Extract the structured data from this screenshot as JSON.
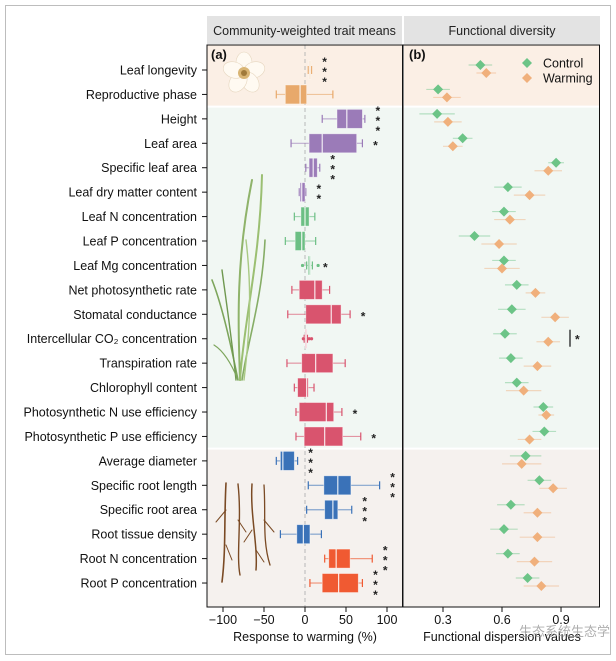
{
  "chart_data": [
    {
      "type": "box",
      "panel": "(a)",
      "title": "Community-weighted trait means",
      "xlabel": "Response to warming (%)",
      "xlim": [
        -120,
        120
      ],
      "xticks": [
        -100,
        -50,
        0,
        50,
        100
      ],
      "xtick_labels": [
        "−100",
        "−50",
        "0",
        "50",
        "100"
      ],
      "reference_line": 0,
      "categories": [
        "Leaf longevity",
        "Reproductive phase",
        "Height",
        "Leaf area",
        "Specific leaf area",
        "Leaf dry matter content",
        "Leaf N concentration",
        "Leaf P concentration",
        "Leaf Mg concentration",
        "Net photosynthetic rate",
        "Stomatal conductance",
        "Intercellular CO₂ concentration",
        "Transpiration rate",
        "Chlorophyll content",
        "Photosynthetic N use efficiency",
        "Photosynthetic P use efficiency",
        "Average diameter",
        "Specific root length",
        "Specific root area",
        "Root tissue density",
        "Root N concentration",
        "Root P concentration"
      ],
      "groups": [
        {
          "name": "reproductive",
          "color": "#e8a96b",
          "rows": [
            0,
            1
          ]
        },
        {
          "name": "leaf-structure",
          "color": "#9b7bb8",
          "rows": [
            2,
            3,
            4,
            5
          ]
        },
        {
          "name": "leaf-chemistry",
          "color": "#6cbf84",
          "rows": [
            6,
            7,
            8
          ]
        },
        {
          "name": "leaf-physiology",
          "color": "#d9546e",
          "rows": [
            9,
            10,
            11,
            12,
            13,
            14,
            15
          ]
        },
        {
          "name": "root-morphology",
          "color": "#3a72b8",
          "rows": [
            16,
            17,
            18,
            19
          ]
        },
        {
          "name": "root-chemistry",
          "color": "#f05a32",
          "rows": [
            20,
            21
          ]
        }
      ],
      "boxes": [
        {
          "wlo": 4,
          "q1": 5,
          "med": 6,
          "q3": 7,
          "whi": 8,
          "sig": "***"
        },
        {
          "wlo": -35,
          "q1": -24,
          "med": -6,
          "q3": 2,
          "whi": 34,
          "sig": ""
        },
        {
          "wlo": 21,
          "q1": 39,
          "med": 51,
          "q3": 70,
          "whi": 73,
          "sig": "***"
        },
        {
          "wlo": -17,
          "q1": 5,
          "med": 21,
          "q3": 63,
          "whi": 70,
          "sig": "*"
        },
        {
          "wlo": 1,
          "q1": 5,
          "med": 10,
          "q3": 15,
          "whi": 18,
          "sig": "***"
        },
        {
          "wlo": -7,
          "q1": -6,
          "med": -4,
          "q3": 0,
          "whi": 1,
          "sig": "**"
        },
        {
          "wlo": -13,
          "q1": -5,
          "med": 0,
          "q3": 5,
          "whi": 12,
          "sig": ""
        },
        {
          "wlo": -24,
          "q1": -12,
          "med": -4,
          "q3": 0,
          "whi": 13,
          "sig": ""
        },
        {
          "wlo": 2,
          "q1": 4,
          "med": 6,
          "q3": 7,
          "whi": 9,
          "sig": "*",
          "outliers": [
            -3,
            16
          ]
        },
        {
          "wlo": -16,
          "q1": -7,
          "med": 12,
          "q3": 21,
          "whi": 30,
          "sig": ""
        },
        {
          "wlo": -21,
          "q1": 1,
          "med": 32,
          "q3": 44,
          "whi": 55,
          "sig": "*"
        },
        {
          "wlo": -1,
          "q1": 0,
          "med": 1,
          "q3": 2,
          "whi": 3,
          "sig": "",
          "outliers": [
            -2,
            5,
            8
          ]
        },
        {
          "wlo": -22,
          "q1": -4,
          "med": 13,
          "q3": 34,
          "whi": 49,
          "sig": ""
        },
        {
          "wlo": -13,
          "q1": -9,
          "med": 2,
          "q3": 4,
          "whi": 11,
          "sig": ""
        },
        {
          "wlo": -11,
          "q1": -7,
          "med": 26,
          "q3": 35,
          "whi": 45,
          "sig": "*"
        },
        {
          "wlo": -11,
          "q1": -1,
          "med": 24,
          "q3": 46,
          "whi": 68,
          "sig": "*"
        },
        {
          "wlo": -35,
          "q1": -30,
          "med": -27,
          "q3": -13,
          "whi": -9,
          "sig": "***"
        },
        {
          "wlo": 4,
          "q1": 23,
          "med": 40,
          "q3": 56,
          "whi": 91,
          "sig": "***"
        },
        {
          "wlo": 2,
          "q1": 24,
          "med": 34,
          "q3": 40,
          "whi": 57,
          "sig": "***"
        },
        {
          "wlo": -30,
          "q1": -10,
          "med": -2,
          "q3": 6,
          "whi": 20,
          "sig": ""
        },
        {
          "wlo": 24,
          "q1": 29,
          "med": 38,
          "q3": 55,
          "whi": 82,
          "sig": "***"
        },
        {
          "wlo": 6,
          "q1": 21,
          "med": 41,
          "q3": 65,
          "whi": 70,
          "sig": "***"
        }
      ]
    },
    {
      "type": "scatter",
      "panel": "(b)",
      "title": "Functional diversity",
      "xlabel": "Functional dispersion values",
      "xlim": [
        0.1,
        1.1
      ],
      "xticks": [
        0.3,
        0.6,
        0.9
      ],
      "xtick_labels": [
        "0.3",
        "0.6",
        "0.9"
      ],
      "legend": {
        "position": "top-right",
        "entries": [
          "Control",
          "Warming"
        ]
      },
      "series": [
        {
          "name": "Control",
          "color": "#6cc487",
          "values": [
            0.49,
            0.275,
            0.27,
            0.4,
            0.875,
            0.63,
            0.61,
            0.46,
            0.61,
            0.675,
            0.65,
            0.615,
            0.645,
            0.675,
            0.81,
            0.815,
            0.72,
            0.79,
            0.645,
            0.61,
            0.63,
            0.73
          ],
          "err": [
            0.06,
            0.06,
            0.09,
            0.05,
            0.04,
            0.07,
            0.06,
            0.08,
            0.06,
            0.06,
            0.07,
            0.06,
            0.06,
            0.06,
            0.05,
            0.06,
            0.08,
            0.06,
            0.07,
            0.07,
            0.06,
            0.06
          ]
        },
        {
          "name": "Warming",
          "color": "#f0b07c",
          "values": [
            0.52,
            0.32,
            0.325,
            0.35,
            0.835,
            0.74,
            0.64,
            0.585,
            0.6,
            0.77,
            0.87,
            0.835,
            0.78,
            0.71,
            0.825,
            0.74,
            0.7,
            0.86,
            0.78,
            0.78,
            0.765,
            0.8
          ],
          "err": [
            0.05,
            0.07,
            0.07,
            0.05,
            0.07,
            0.08,
            0.08,
            0.09,
            0.09,
            0.05,
            0.07,
            0.06,
            0.07,
            0.09,
            0.04,
            0.06,
            0.1,
            0.07,
            0.07,
            0.09,
            0.09,
            0.09
          ]
        }
      ],
      "annotations": [
        {
          "row": 11,
          "text": "*"
        }
      ]
    }
  ],
  "bands": [
    {
      "rows": [
        0,
        1
      ],
      "color": "#fbefe5"
    },
    {
      "rows": [
        2,
        15
      ],
      "color": "#f1f7f3"
    },
    {
      "rows": [
        16,
        21
      ],
      "color": "#f5f1ee"
    }
  ],
  "watermark": "生态系统生态学"
}
